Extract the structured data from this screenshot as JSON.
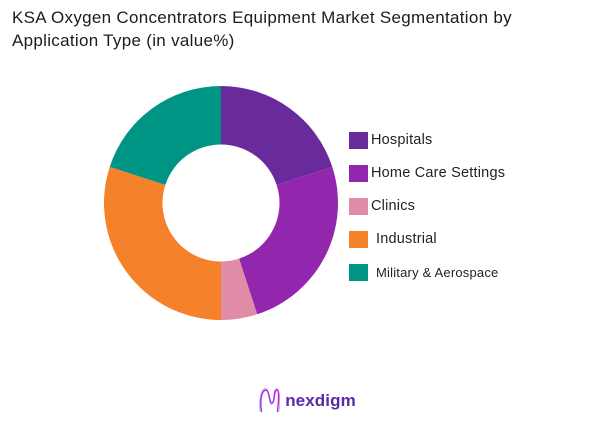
{
  "title": "KSA Oxygen Concentrators Equipment Market Segmentation by Application Type (in value%)",
  "chart_data": {
    "type": "pie",
    "subtype": "donut",
    "title": "KSA Oxygen Concentrators Equipment Market Segmentation by Application Type (in value%)",
    "unit": "value %",
    "start_angle_deg": 0,
    "direction": "clockwise",
    "inner_radius_ratio": 0.5,
    "legend_position": "right",
    "grid": false,
    "segments": [
      {
        "label": "Hospitals",
        "value": 20,
        "color": "#692A9B"
      },
      {
        "label": "Home Care Settings",
        "value": 25,
        "color": "#9227AE"
      },
      {
        "label": "Clinics",
        "value": 5,
        "color": "#E08CA6"
      },
      {
        "label": "Industrial",
        "value": 30,
        "color": "#F5822A"
      },
      {
        "label": "Military & Aerospace",
        "value": 20,
        "color": "#009484"
      }
    ]
  },
  "footer": {
    "brand": "nexdigm"
  },
  "icons": {
    "logo_mark": "nexdigm-wave-n-icon"
  },
  "colors": {
    "logo_text": "#5B2AA8",
    "title_text": "#1C1C1E",
    "background": "#FFFFFF"
  }
}
